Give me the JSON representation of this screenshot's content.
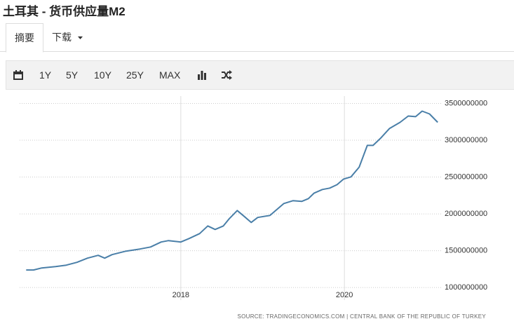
{
  "header": {
    "title": "土耳其 - 货币供应量M2"
  },
  "tabs": [
    "摘要",
    "下载"
  ],
  "toolbar": [
    "1Y",
    "5Y",
    "10Y",
    "25Y",
    "MAX"
  ],
  "chart_data": {
    "type": "line",
    "x": [
      2016.11,
      2016.2,
      2016.3,
      2016.47,
      2016.6,
      2016.73,
      2016.86,
      2016.99,
      2017.07,
      2017.16,
      2017.33,
      2017.5,
      2017.63,
      2017.76,
      2017.85,
      2018.0,
      2018.1,
      2018.23,
      2018.33,
      2018.42,
      2018.52,
      2018.59,
      2018.69,
      2018.77,
      2018.86,
      2018.94,
      2019.09,
      2019.18,
      2019.26,
      2019.37,
      2019.48,
      2019.56,
      2019.63,
      2019.73,
      2019.82,
      2019.91,
      2019.99,
      2020.08,
      2020.18,
      2020.28,
      2020.35,
      2020.44,
      2020.55,
      2020.68,
      2020.78,
      2020.87,
      2020.95,
      2021.04,
      2021.14
    ],
    "values": [
      1238000000,
      1238000000,
      1266000000,
      1285000000,
      1304000000,
      1342000000,
      1399000000,
      1437000000,
      1399000000,
      1447000000,
      1494000000,
      1523000000,
      1551000000,
      1618000000,
      1637000000,
      1618000000,
      1665000000,
      1732000000,
      1836000000,
      1789000000,
      1836000000,
      1932000000,
      2046000000,
      1970000000,
      1884000000,
      1951000000,
      1979000000,
      2065000000,
      2141000000,
      2179000000,
      2170000000,
      2207000000,
      2283000000,
      2331000000,
      2350000000,
      2397000000,
      2473000000,
      2502000000,
      2635000000,
      2930000000,
      2930000000,
      3025000000,
      3158000000,
      3243000000,
      3329000000,
      3320000000,
      3395000000,
      3357000000,
      3243000000
    ],
    "color": "#4a7fa8",
    "xlim": [
      2016.03,
      2021.19
    ],
    "xticks": [
      2018,
      2020
    ],
    "ylim": [
      830000000,
      3600000000
    ],
    "yticks": [
      1000000000,
      1500000000,
      2000000000,
      2500000000,
      3000000000,
      3500000000
    ],
    "grid": true,
    "source": "SOURCE: TRADINGECONOMICS.COM | CENTRAL BANK OF THE REPUBLIC OF TURKEY"
  }
}
